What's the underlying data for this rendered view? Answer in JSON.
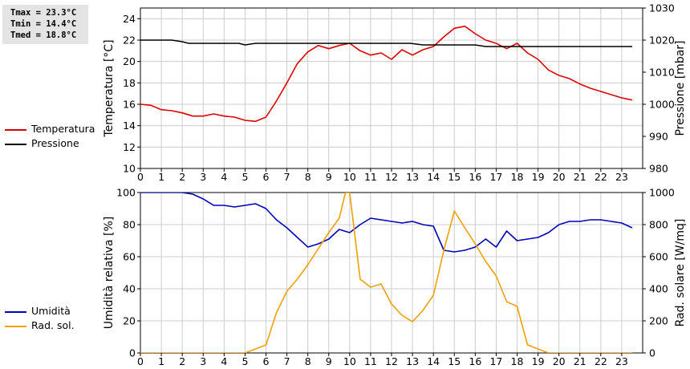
{
  "stats": {
    "tmax": "Tmax = 23.3°C",
    "tmin": "Tmin = 14.4°C",
    "tmed": "Tmed = 18.8°C"
  },
  "legend_top": [
    {
      "label": "Temperatura",
      "color": "#dd0000"
    },
    {
      "label": "Pressione",
      "color": "#000000"
    }
  ],
  "legend_bottom": [
    {
      "label": "Umidità",
      "color": "#0000bb"
    },
    {
      "label": "Rad. sol.",
      "color": "#f0a000"
    }
  ],
  "chart_data": [
    {
      "type": "line",
      "xlim": [
        0,
        24
      ],
      "xticks": [
        0,
        1,
        2,
        3,
        4,
        5,
        6,
        7,
        8,
        9,
        10,
        11,
        12,
        13,
        14,
        15,
        16,
        17,
        18,
        19,
        20,
        21,
        22,
        23
      ],
      "ylabel": "Temperatura [°C]",
      "ylim": [
        10,
        25
      ],
      "yticks": [
        10,
        12,
        14,
        16,
        18,
        20,
        22,
        24
      ],
      "y2label": "Pressione [mbar]",
      "y2lim": [
        980,
        1030
      ],
      "y2ticks": [
        980,
        990,
        1000,
        1010,
        1020,
        1030
      ],
      "grid": true,
      "series": [
        {
          "name": "Temperatura",
          "color": "#dd0000",
          "axis": "left",
          "x": [
            0,
            0.5,
            1,
            1.5,
            2,
            2.5,
            3,
            3.5,
            4,
            4.5,
            5,
            5.5,
            6,
            6.5,
            7,
            7.5,
            8,
            8.5,
            9,
            9.5,
            10,
            10.5,
            11,
            11.5,
            12,
            12.5,
            13,
            13.5,
            14,
            14.5,
            15,
            15.5,
            16,
            16.5,
            17,
            17.5,
            18,
            18.5,
            19,
            19.5,
            20,
            20.5,
            21,
            21.5,
            22,
            22.5,
            23,
            23.5
          ],
          "values": [
            16.0,
            15.9,
            15.5,
            15.4,
            15.2,
            14.9,
            14.9,
            15.1,
            14.9,
            14.8,
            14.5,
            14.4,
            14.8,
            16.3,
            18.0,
            19.8,
            20.9,
            21.5,
            21.2,
            21.5,
            21.7,
            21.0,
            20.6,
            20.8,
            20.2,
            21.1,
            20.6,
            21.1,
            21.4,
            22.3,
            23.1,
            23.3,
            22.6,
            22.0,
            21.7,
            21.2,
            21.7,
            20.8,
            20.2,
            19.2,
            18.7,
            18.4,
            17.9,
            17.5,
            17.2,
            16.9,
            16.6,
            16.4
          ]
        },
        {
          "name": "Pressione",
          "color": "#000000",
          "axis": "right",
          "x": [
            0,
            1,
            1.5,
            2,
            2.3,
            4.7,
            5,
            5.5,
            6,
            12.9,
            13.5,
            14,
            15,
            15.5,
            16,
            16.5,
            17,
            17.5,
            18,
            18.5,
            19,
            20,
            21,
            22,
            23,
            23.5
          ],
          "values": [
            1020,
            1020,
            1020,
            1019.5,
            1019,
            1019,
            1018.5,
            1019,
            1019,
            1019,
            1018.5,
            1018.5,
            1018.5,
            1018.5,
            1018.5,
            1018,
            1018,
            1018,
            1018,
            1018,
            1018,
            1018,
            1018,
            1018,
            1018,
            1018
          ]
        }
      ]
    },
    {
      "type": "line",
      "xlim": [
        0,
        24
      ],
      "xticks": [
        0,
        1,
        2,
        3,
        4,
        5,
        6,
        7,
        8,
        9,
        10,
        11,
        12,
        13,
        14,
        15,
        16,
        17,
        18,
        19,
        20,
        21,
        22,
        23
      ],
      "ylabel": "Umidità relativa [%]",
      "ylim": [
        0,
        100
      ],
      "yticks": [
        0,
        20,
        40,
        60,
        80,
        100
      ],
      "y2label": "Rad. solare [W/mq]",
      "y2lim": [
        0,
        1000
      ],
      "y2ticks": [
        0,
        200,
        400,
        600,
        800,
        1000
      ],
      "grid": true,
      "series": [
        {
          "name": "Umidità",
          "color": "#0000bb",
          "axis": "left",
          "x": [
            0,
            0.5,
            1,
            1.5,
            2,
            2.5,
            3,
            3.5,
            4,
            4.5,
            5,
            5.5,
            6,
            6.5,
            7,
            7.5,
            8,
            8.5,
            9,
            9.5,
            10,
            10.5,
            11,
            11.5,
            12,
            12.5,
            13,
            13.5,
            14,
            14.5,
            15,
            15.5,
            16,
            16.5,
            17,
            17.5,
            18,
            18.5,
            19,
            19.5,
            20,
            20.5,
            21,
            21.5,
            22,
            22.5,
            23,
            23.5
          ],
          "values": [
            100,
            100,
            100,
            100,
            100,
            99,
            96,
            92,
            92,
            91,
            92,
            93,
            90,
            83,
            78,
            72,
            66,
            68,
            71,
            77,
            75,
            80,
            84,
            83,
            82,
            81,
            82,
            80,
            79,
            64,
            63,
            64,
            66,
            71,
            66,
            76,
            70,
            71,
            72,
            75,
            80,
            82,
            82,
            83,
            83,
            82,
            81,
            78
          ]
        },
        {
          "name": "Rad. sol.",
          "color": "#f0a000",
          "axis": "right",
          "x": [
            0,
            0.5,
            1,
            1.5,
            2,
            2.5,
            3,
            3.5,
            4,
            4.5,
            5,
            5.5,
            6,
            6.5,
            7,
            7.5,
            8,
            8.5,
            9,
            9.5,
            9.8,
            10,
            10.5,
            11,
            11.5,
            12,
            12.5,
            13,
            13.5,
            14,
            14.5,
            15,
            15.5,
            16,
            16.5,
            17,
            17.5,
            18,
            18.5,
            19,
            19.5,
            20,
            20.5,
            21,
            21.5,
            22,
            22.5,
            23,
            23.5
          ],
          "values": [
            0,
            0,
            0,
            0,
            0,
            0,
            0,
            0,
            0,
            0,
            0,
            25,
            50,
            250,
            385,
            460,
            550,
            650,
            750,
            840,
            1000,
            1000,
            460,
            410,
            430,
            305,
            235,
            195,
            265,
            360,
            640,
            885,
            780,
            680,
            570,
            480,
            320,
            290,
            50,
            25,
            0,
            0,
            0,
            0,
            0,
            0,
            0,
            0,
            0
          ]
        }
      ]
    }
  ]
}
